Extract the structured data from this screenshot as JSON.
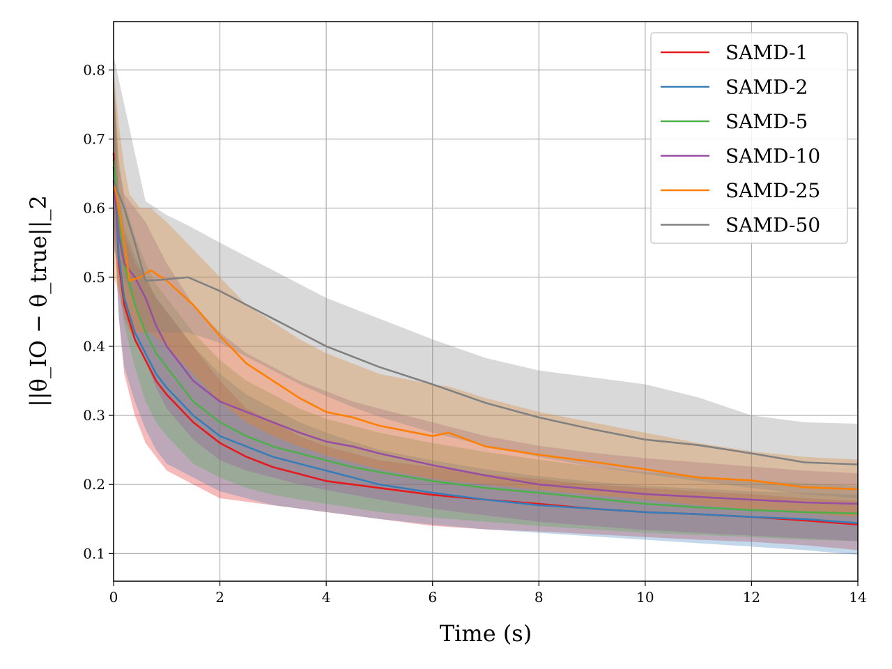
{
  "chart_data": {
    "type": "line",
    "title": "",
    "xlabel": "Time (s)",
    "ylabel": "||θ_IO − θ_true||_2",
    "xlim": [
      0,
      14
    ],
    "ylim": [
      0.06,
      0.87
    ],
    "xticks": [
      0,
      2,
      4,
      6,
      8,
      10,
      12,
      14
    ],
    "xtick_labels": [
      "0",
      "2",
      "4",
      "6",
      "8",
      "10",
      "12",
      "14"
    ],
    "yticks": [
      0.1,
      0.2,
      0.3,
      0.4,
      0.5,
      0.6,
      0.7,
      0.8
    ],
    "ytick_labels": [
      "0.1",
      "0.2",
      "0.3",
      "0.4",
      "0.5",
      "0.6",
      "0.7",
      "0.8"
    ],
    "grid": true,
    "legend_position": "top-right",
    "series": [
      {
        "name": "SAMD-1",
        "color": "#e41a1c",
        "x": [
          0,
          0.1,
          0.2,
          0.4,
          0.6,
          0.8,
          1,
          1.5,
          2,
          2.5,
          3,
          3.5,
          4,
          4.5,
          5,
          6,
          7,
          8,
          9,
          10,
          11,
          12,
          13,
          14
        ],
        "y": [
          0.68,
          0.52,
          0.46,
          0.41,
          0.38,
          0.35,
          0.33,
          0.29,
          0.26,
          0.24,
          0.225,
          0.215,
          0.205,
          0.2,
          0.195,
          0.185,
          0.178,
          0.172,
          0.165,
          0.16,
          0.157,
          0.153,
          0.148,
          0.142
        ],
        "band_lower": [
          0.6,
          0.44,
          0.36,
          0.3,
          0.26,
          0.24,
          0.22,
          0.2,
          0.18,
          0.175,
          0.17,
          0.165,
          0.16,
          0.155,
          0.15,
          0.14,
          0.135,
          0.132,
          0.128,
          0.124,
          0.12,
          0.117,
          0.112,
          0.105
        ],
        "band_upper": [
          0.8,
          0.6,
          0.56,
          0.52,
          0.5,
          0.47,
          0.45,
          0.4,
          0.35,
          0.31,
          0.29,
          0.27,
          0.255,
          0.245,
          0.235,
          0.225,
          0.215,
          0.208,
          0.2,
          0.195,
          0.19,
          0.186,
          0.18,
          0.176
        ]
      },
      {
        "name": "SAMD-2",
        "color": "#377eb8",
        "x": [
          0,
          0.1,
          0.2,
          0.4,
          0.6,
          0.8,
          1,
          1.5,
          2,
          2.5,
          3,
          3.5,
          4,
          4.5,
          5,
          6,
          7,
          8,
          9,
          10,
          11,
          12,
          13,
          14
        ],
        "y": [
          0.66,
          0.53,
          0.47,
          0.42,
          0.39,
          0.36,
          0.34,
          0.3,
          0.27,
          0.255,
          0.24,
          0.23,
          0.22,
          0.21,
          0.2,
          0.188,
          0.178,
          0.17,
          0.165,
          0.16,
          0.157,
          0.153,
          0.15,
          0.144
        ],
        "band_lower": [
          0.58,
          0.44,
          0.37,
          0.32,
          0.28,
          0.25,
          0.23,
          0.21,
          0.19,
          0.18,
          0.17,
          0.165,
          0.16,
          0.155,
          0.15,
          0.142,
          0.135,
          0.13,
          0.125,
          0.12,
          0.115,
          0.11,
          0.105,
          0.098
        ],
        "band_upper": [
          0.8,
          0.62,
          0.57,
          0.53,
          0.5,
          0.47,
          0.45,
          0.4,
          0.36,
          0.33,
          0.31,
          0.29,
          0.275,
          0.262,
          0.25,
          0.235,
          0.222,
          0.212,
          0.204,
          0.198,
          0.194,
          0.19,
          0.188,
          0.185
        ]
      },
      {
        "name": "SAMD-5",
        "color": "#4daf4a",
        "x": [
          0,
          0.1,
          0.2,
          0.4,
          0.6,
          0.8,
          1,
          1.5,
          2,
          2.5,
          3,
          3.5,
          4,
          4.5,
          5,
          6,
          7,
          8,
          9,
          10,
          11,
          12,
          13,
          14
        ],
        "y": [
          0.67,
          0.58,
          0.52,
          0.46,
          0.42,
          0.39,
          0.37,
          0.32,
          0.29,
          0.27,
          0.255,
          0.245,
          0.235,
          0.225,
          0.218,
          0.205,
          0.195,
          0.188,
          0.18,
          0.172,
          0.167,
          0.163,
          0.16,
          0.158
        ],
        "band_lower": [
          0.6,
          0.5,
          0.43,
          0.37,
          0.32,
          0.29,
          0.27,
          0.23,
          0.21,
          0.195,
          0.185,
          0.178,
          0.172,
          0.166,
          0.16,
          0.152,
          0.146,
          0.14,
          0.135,
          0.13,
          0.127,
          0.124,
          0.12,
          0.118
        ],
        "band_upper": [
          0.8,
          0.67,
          0.61,
          0.56,
          0.52,
          0.49,
          0.47,
          0.42,
          0.38,
          0.35,
          0.33,
          0.31,
          0.295,
          0.285,
          0.275,
          0.26,
          0.247,
          0.236,
          0.226,
          0.218,
          0.212,
          0.206,
          0.202,
          0.198
        ]
      },
      {
        "name": "SAMD-10",
        "color": "#984ea3",
        "x": [
          0,
          0.1,
          0.2,
          0.4,
          0.6,
          0.8,
          1,
          1.5,
          2,
          2.5,
          3,
          3.5,
          4,
          4.5,
          5,
          6,
          7,
          8,
          9,
          10,
          11,
          12,
          13,
          14
        ],
        "y": [
          0.64,
          0.56,
          0.52,
          0.5,
          0.47,
          0.43,
          0.4,
          0.35,
          0.32,
          0.305,
          0.29,
          0.275,
          0.262,
          0.255,
          0.245,
          0.228,
          0.213,
          0.2,
          0.193,
          0.186,
          0.182,
          0.178,
          0.174,
          0.172
        ],
        "band_lower": [
          0.56,
          0.48,
          0.44,
          0.41,
          0.38,
          0.34,
          0.31,
          0.265,
          0.235,
          0.22,
          0.21,
          0.2,
          0.192,
          0.185,
          0.178,
          0.165,
          0.155,
          0.146,
          0.14,
          0.134,
          0.13,
          0.126,
          0.122,
          0.118
        ],
        "band_upper": [
          0.78,
          0.66,
          0.62,
          0.6,
          0.58,
          0.55,
          0.52,
          0.46,
          0.42,
          0.39,
          0.37,
          0.35,
          0.335,
          0.32,
          0.31,
          0.29,
          0.27,
          0.256,
          0.246,
          0.238,
          0.232,
          0.226,
          0.22,
          0.216
        ]
      },
      {
        "name": "SAMD-25",
        "color": "#ff7f00",
        "x": [
          0,
          0.1,
          0.2,
          0.3,
          0.5,
          0.7,
          1,
          1.5,
          2,
          2.5,
          3,
          3.5,
          4,
          4.5,
          5,
          6,
          6.3,
          7,
          8,
          9,
          10,
          11,
          12,
          13,
          14
        ],
        "y": [
          0.64,
          0.6,
          0.55,
          0.495,
          0.5,
          0.51,
          0.495,
          0.46,
          0.415,
          0.375,
          0.35,
          0.325,
          0.305,
          0.297,
          0.285,
          0.27,
          0.275,
          0.255,
          0.243,
          0.233,
          0.222,
          0.21,
          0.206,
          0.196,
          0.193
        ],
        "band_lower": [
          0.5,
          0.48,
          0.45,
          0.42,
          0.42,
          0.42,
          0.4,
          0.36,
          0.32,
          0.29,
          0.27,
          0.255,
          0.242,
          0.232,
          0.222,
          0.208,
          0.205,
          0.2,
          0.192,
          0.185,
          0.178,
          0.17,
          0.164,
          0.158,
          0.153
        ],
        "band_upper": [
          0.8,
          0.72,
          0.66,
          0.62,
          0.6,
          0.6,
          0.58,
          0.54,
          0.5,
          0.46,
          0.435,
          0.41,
          0.39,
          0.375,
          0.36,
          0.345,
          0.342,
          0.325,
          0.305,
          0.29,
          0.275,
          0.26,
          0.248,
          0.24,
          0.236
        ]
      },
      {
        "name": "SAMD-50",
        "color": "#808080",
        "x": [
          0,
          0.2,
          0.4,
          0.6,
          1,
          1.4,
          2,
          2.5,
          3,
          3.5,
          4,
          4.5,
          5,
          6,
          7,
          8,
          9,
          10,
          11,
          12,
          13,
          14
        ],
        "y": [
          0.64,
          0.6,
          0.55,
          0.495,
          0.497,
          0.5,
          0.48,
          0.46,
          0.44,
          0.42,
          0.4,
          0.385,
          0.37,
          0.345,
          0.318,
          0.297,
          0.28,
          0.265,
          0.257,
          0.245,
          0.232,
          0.229
        ],
        "band_lower": [
          0.54,
          0.5,
          0.46,
          0.42,
          0.42,
          0.42,
          0.405,
          0.385,
          0.365,
          0.345,
          0.328,
          0.312,
          0.298,
          0.275,
          0.256,
          0.24,
          0.226,
          0.215,
          0.205,
          0.195,
          0.186,
          0.18
        ],
        "band_upper": [
          0.82,
          0.75,
          0.68,
          0.61,
          0.59,
          0.575,
          0.55,
          0.53,
          0.51,
          0.49,
          0.47,
          0.455,
          0.44,
          0.41,
          0.383,
          0.365,
          0.355,
          0.345,
          0.326,
          0.3,
          0.29,
          0.288
        ]
      }
    ]
  }
}
